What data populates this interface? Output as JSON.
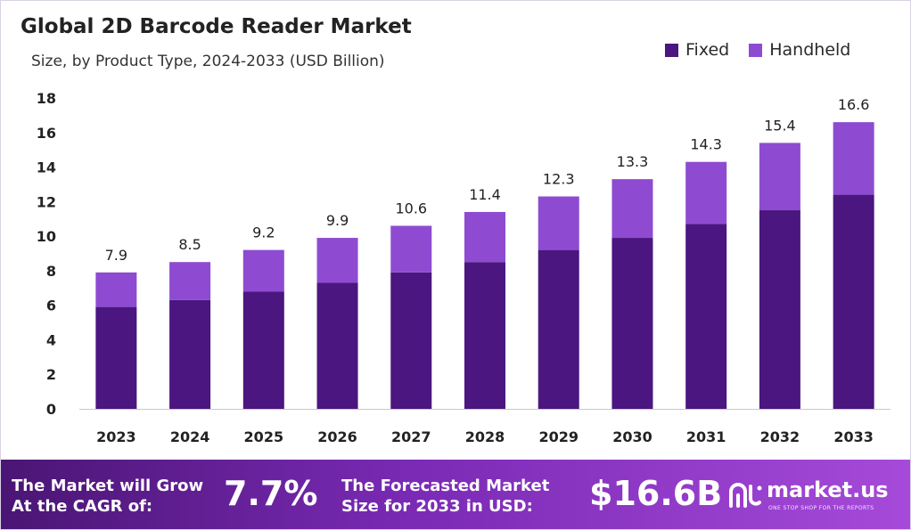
{
  "chart_data": {
    "type": "bar",
    "stacked": true,
    "title": "Global 2D Barcode Reader Market",
    "subtitle": "Size, by Product Type, 2024-2033 (USD Billion)",
    "categories": [
      "2023",
      "2024",
      "2025",
      "2026",
      "2027",
      "2028",
      "2029",
      "2030",
      "2031",
      "2032",
      "2033"
    ],
    "series": [
      {
        "name": "Fixed",
        "values": [
          5.9,
          6.3,
          6.8,
          7.3,
          7.9,
          8.5,
          9.2,
          9.9,
          10.7,
          11.5,
          12.4
        ]
      },
      {
        "name": "Handheld",
        "values": [
          2.0,
          2.2,
          2.4,
          2.6,
          2.7,
          2.9,
          3.1,
          3.4,
          3.6,
          3.9,
          4.2
        ]
      }
    ],
    "totals": [
      "7.9",
      "8.5",
      "9.2",
      "9.9",
      "10.6",
      "11.4",
      "12.3",
      "13.3",
      "14.3",
      "15.4",
      "16.6"
    ],
    "ylim": [
      0,
      18
    ],
    "yticks": [
      0,
      2,
      4,
      6,
      8,
      10,
      12,
      14,
      16,
      18
    ],
    "grid": false,
    "legend": "top-right",
    "colors": {
      "Fixed": "#4b1680",
      "Handheld": "#8e4bd1"
    }
  },
  "footer": {
    "cagr_text": "The Market will Grow At the CAGR of:",
    "cagr_value": "7.7%",
    "forecast_text": "The Forecasted Market Size for 2033 in USD:",
    "forecast_value": "$16.6B",
    "logo_name": "market.us",
    "logo_tagline": "ONE STOP SHOP FOR THE REPORTS"
  }
}
